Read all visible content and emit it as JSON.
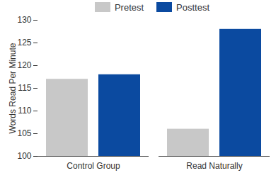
{
  "chart_data": {
    "type": "bar",
    "categories": [
      "Control Group",
      "Read Naturally"
    ],
    "series": [
      {
        "name": "Pretest",
        "color": "#c8c8c8",
        "values": [
          117,
          106
        ]
      },
      {
        "name": "Posttest",
        "color": "#0b4aa0",
        "values": [
          118,
          128
        ]
      }
    ],
    "ylabel": "Words Read Per Minute",
    "ylim": [
      100,
      130
    ],
    "yticks": [
      100,
      105,
      110,
      115,
      120,
      125,
      130
    ],
    "legend": "top",
    "grid": false
  }
}
